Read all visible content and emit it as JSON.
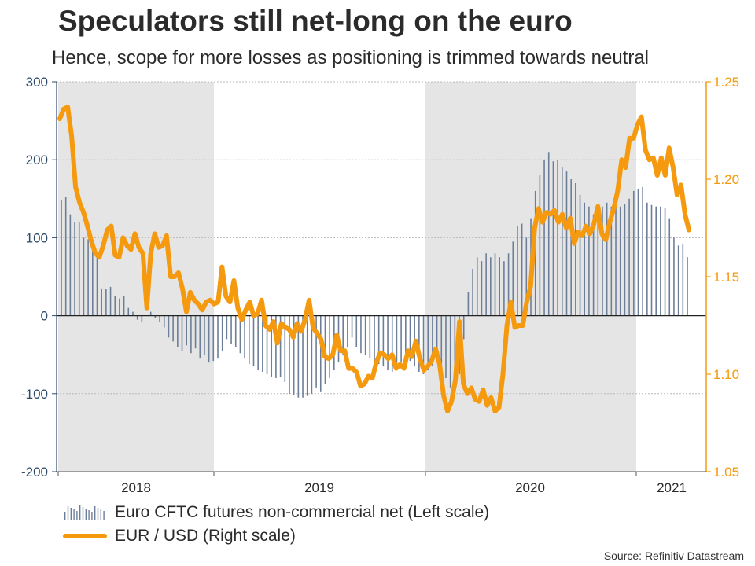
{
  "chart_data": {
    "type": "bar+line",
    "title": "Speculators still net-long on the euro",
    "subtitle": "Hence, scope for more losses as positioning is trimmed towards neutral",
    "source": "Source: Refinitiv Datastream",
    "x_labels": [
      "2018",
      "2019",
      "2020",
      "2021"
    ],
    "left_axis": {
      "ticks": [
        300,
        200,
        100,
        0,
        -100,
        -200
      ],
      "labels": [
        "300",
        "200",
        "100",
        "0",
        "-100",
        "-200"
      ],
      "ylim": [
        -200,
        300
      ]
    },
    "right_axis": {
      "ticks": [
        1.25,
        1.2,
        1.15,
        1.1,
        1.05
      ],
      "labels": [
        "1.25",
        "1.20",
        "1.15",
        "1.10",
        "1.05"
      ],
      "ylim": [
        1.05,
        1.25
      ]
    },
    "shaded_years": [
      "2018",
      "2020"
    ],
    "series": [
      {
        "name": "Euro CFTC futures non-commercial net (Left scale)",
        "axis": "left",
        "kind": "bar",
        "color": "#6d7f98",
        "values": [
          148,
          152,
          130,
          120,
          120,
          100,
          98,
          88,
          80,
          35,
          34,
          37,
          25,
          22,
          25,
          10,
          5,
          -5,
          -8,
          0,
          5,
          -3,
          -8,
          -15,
          -28,
          -33,
          -40,
          -45,
          -38,
          -48,
          -42,
          -55,
          -50,
          -60,
          -58,
          -55,
          -45,
          -30,
          -36,
          -40,
          -48,
          -55,
          -62,
          -65,
          -70,
          -72,
          -75,
          -78,
          -80,
          -78,
          -85,
          -100,
          -102,
          -105,
          -105,
          -103,
          -100,
          -92,
          -98,
          -88,
          -80,
          -70,
          -60,
          -50,
          -40,
          -28,
          -40,
          -48,
          -50,
          -55,
          -60,
          -62,
          -65,
          -70,
          -72,
          -68,
          -60,
          -62,
          -58,
          -65,
          -72,
          -75,
          -70,
          -65,
          -55,
          -72,
          -80,
          -92,
          -88,
          -75,
          -30,
          30,
          60,
          75,
          70,
          80,
          75,
          80,
          75,
          70,
          80,
          95,
          115,
          118,
          100,
          125,
          160,
          180,
          200,
          210,
          198,
          200,
          190,
          185,
          175,
          170,
          155,
          145,
          140,
          130,
          135,
          140,
          145,
          140,
          142,
          140,
          143,
          150,
          160,
          162,
          165,
          145,
          142,
          140,
          140,
          138,
          125,
          100,
          90,
          92,
          75
        ]
      },
      {
        "name": "EUR / USD (Right scale)",
        "axis": "right",
        "kind": "line",
        "color": "#f59a0e",
        "values": [
          1.231,
          1.236,
          1.237,
          1.222,
          1.196,
          1.188,
          1.183,
          1.176,
          1.168,
          1.162,
          1.16,
          1.166,
          1.174,
          1.176,
          1.161,
          1.16,
          1.17,
          1.166,
          1.164,
          1.172,
          1.165,
          1.162,
          1.134,
          1.162,
          1.172,
          1.165,
          1.166,
          1.171,
          1.15,
          1.15,
          1.152,
          1.144,
          1.132,
          1.142,
          1.138,
          1.136,
          1.133,
          1.137,
          1.138,
          1.136,
          1.137,
          1.155,
          1.14,
          1.137,
          1.148,
          1.134,
          1.128,
          1.133,
          1.137,
          1.13,
          1.131,
          1.138,
          1.125,
          1.123,
          1.127,
          1.116,
          1.126,
          1.124,
          1.123,
          1.119,
          1.126,
          1.122,
          1.128,
          1.138,
          1.124,
          1.121,
          1.118,
          1.109,
          1.108,
          1.11,
          1.12,
          1.112,
          1.112,
          1.103,
          1.103,
          1.101,
          1.094,
          1.095,
          1.099,
          1.098,
          1.106,
          1.111,
          1.11,
          1.108,
          1.11,
          1.103,
          1.105,
          1.103,
          1.112,
          1.109,
          1.117,
          1.108,
          1.102,
          1.104,
          1.107,
          1.113,
          1.105,
          1.089,
          1.081,
          1.086,
          1.097,
          1.127,
          1.095,
          1.09,
          1.093,
          1.087,
          1.086,
          1.092,
          1.084,
          1.088,
          1.081,
          1.083,
          1.1,
          1.125,
          1.137,
          1.124,
          1.125,
          1.125,
          1.137,
          1.145,
          1.175,
          1.185,
          1.178,
          1.183,
          1.182,
          1.184,
          1.178,
          1.182,
          1.175,
          1.18,
          1.167,
          1.173,
          1.171,
          1.176,
          1.172,
          1.177,
          1.186,
          1.172,
          1.169,
          1.178,
          1.185,
          1.194,
          1.21,
          1.206,
          1.221,
          1.221,
          1.228,
          1.232,
          1.215,
          1.21,
          1.211,
          1.202,
          1.211,
          1.202,
          1.216,
          1.206,
          1.192,
          1.197,
          1.182,
          1.174
        ]
      }
    ]
  }
}
